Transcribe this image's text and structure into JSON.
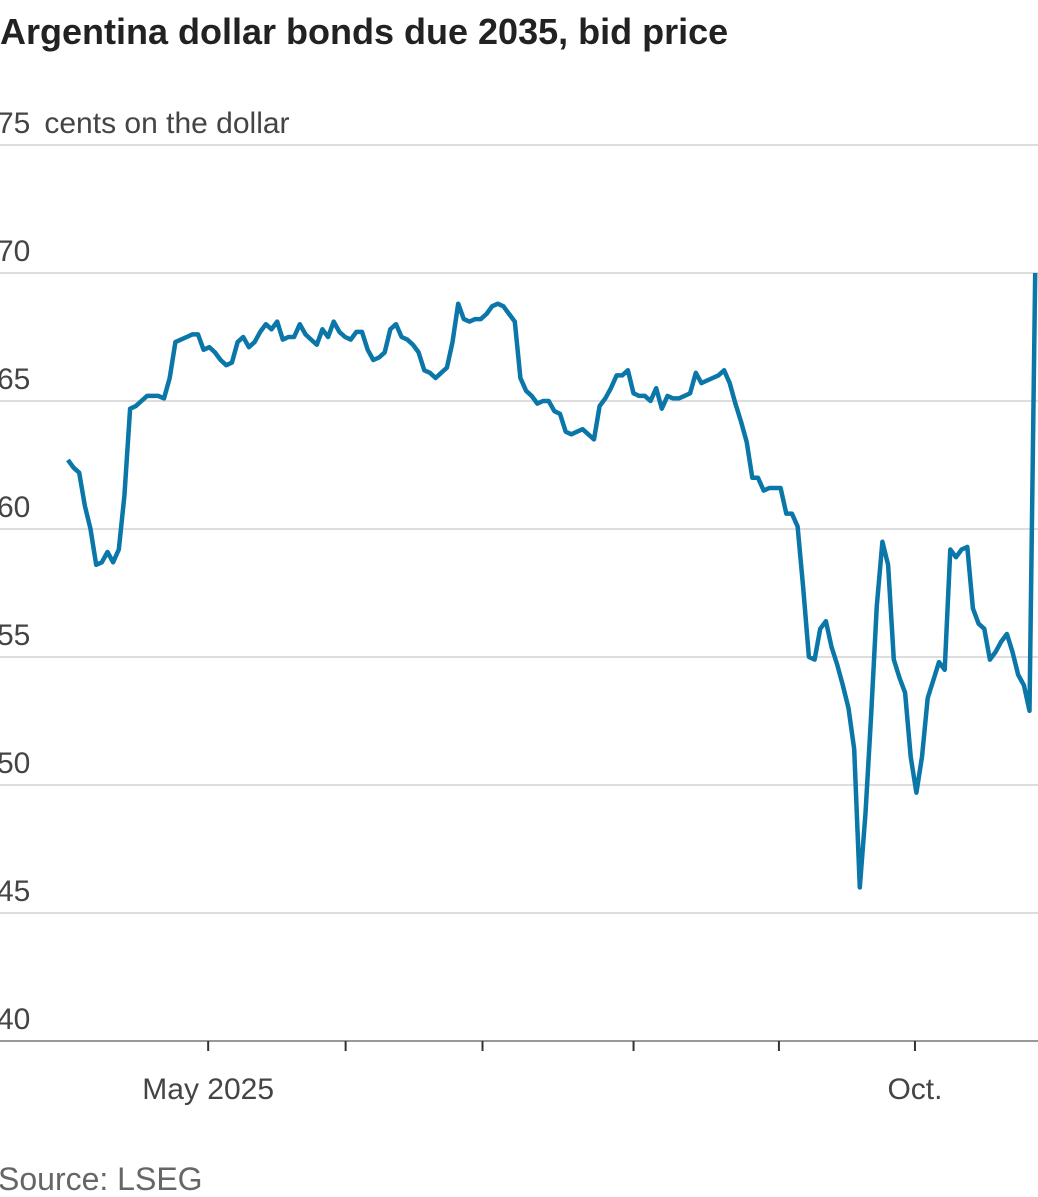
{
  "chart_data": {
    "type": "line",
    "title": "Argentina dollar bonds due 2035, bid price",
    "y_label": "cents on the dollar",
    "source": "Source: LSEG",
    "series": [
      {
        "color": "#0a77a8",
        "values": [
          62.7,
          62.4,
          62.2,
          60.9,
          60.0,
          58.6,
          58.7,
          59.1,
          58.7,
          59.2,
          61.3,
          64.7,
          64.8,
          65.0,
          65.2,
          65.2,
          65.2,
          65.1,
          65.9,
          67.3,
          67.4,
          67.5,
          67.6,
          67.6,
          67.0,
          67.1,
          66.9,
          66.6,
          66.4,
          66.5,
          67.3,
          67.5,
          67.1,
          67.3,
          67.7,
          68.0,
          67.8,
          68.1,
          67.4,
          67.5,
          67.5,
          68.0,
          67.6,
          67.4,
          67.2,
          67.8,
          67.5,
          68.1,
          67.7,
          67.5,
          67.4,
          67.7,
          67.7,
          67.0,
          66.6,
          66.7,
          66.9,
          67.8,
          68.0,
          67.5,
          67.4,
          67.2,
          66.9,
          66.2,
          66.1,
          65.9,
          66.1,
          66.3,
          67.3,
          68.8,
          68.2,
          68.1,
          68.2,
          68.2,
          68.4,
          68.7,
          68.8,
          68.7,
          68.4,
          68.1,
          65.9,
          65.4,
          65.2,
          64.9,
          65.0,
          65.0,
          64.6,
          64.5,
          63.8,
          63.7,
          63.8,
          63.9,
          63.7,
          63.5,
          64.8,
          65.1,
          65.5,
          66.0,
          66.0,
          66.2,
          65.3,
          65.2,
          65.2,
          65.0,
          65.5,
          64.7,
          65.2,
          65.1,
          65.1,
          65.2,
          65.3,
          66.1,
          65.7,
          65.8,
          65.9,
          66.0,
          66.2,
          65.7,
          64.9,
          64.2,
          63.4,
          62.0,
          62.0,
          61.5,
          61.6,
          61.6,
          61.6,
          60.6,
          60.6,
          60.1,
          57.7,
          55.0,
          54.9,
          56.1,
          56.4,
          55.4,
          54.7,
          53.9,
          53.0,
          51.4,
          46.0,
          48.9,
          52.7,
          57.0,
          59.5,
          58.6,
          54.9,
          54.2,
          53.6,
          51.1,
          49.7,
          51.1,
          53.4,
          54.1,
          54.8,
          54.5,
          59.2,
          58.9,
          59.2,
          59.3,
          56.9,
          56.3,
          56.1,
          54.9,
          55.2,
          55.6,
          55.9,
          55.2,
          54.3,
          53.9,
          52.9,
          70.0
        ]
      }
    ],
    "xlim": [
      -12,
      171.5
    ],
    "xticks": [
      {
        "value": 24.8,
        "label": "May 2025"
      },
      49.1,
      73.3,
      100,
      125.7,
      {
        "value": 149.75,
        "label": "Oct."
      }
    ],
    "ylim": [
      40,
      75
    ],
    "yticks": [
      40,
      45,
      50,
      55,
      60,
      65,
      70,
      75
    ],
    "grid": true
  }
}
